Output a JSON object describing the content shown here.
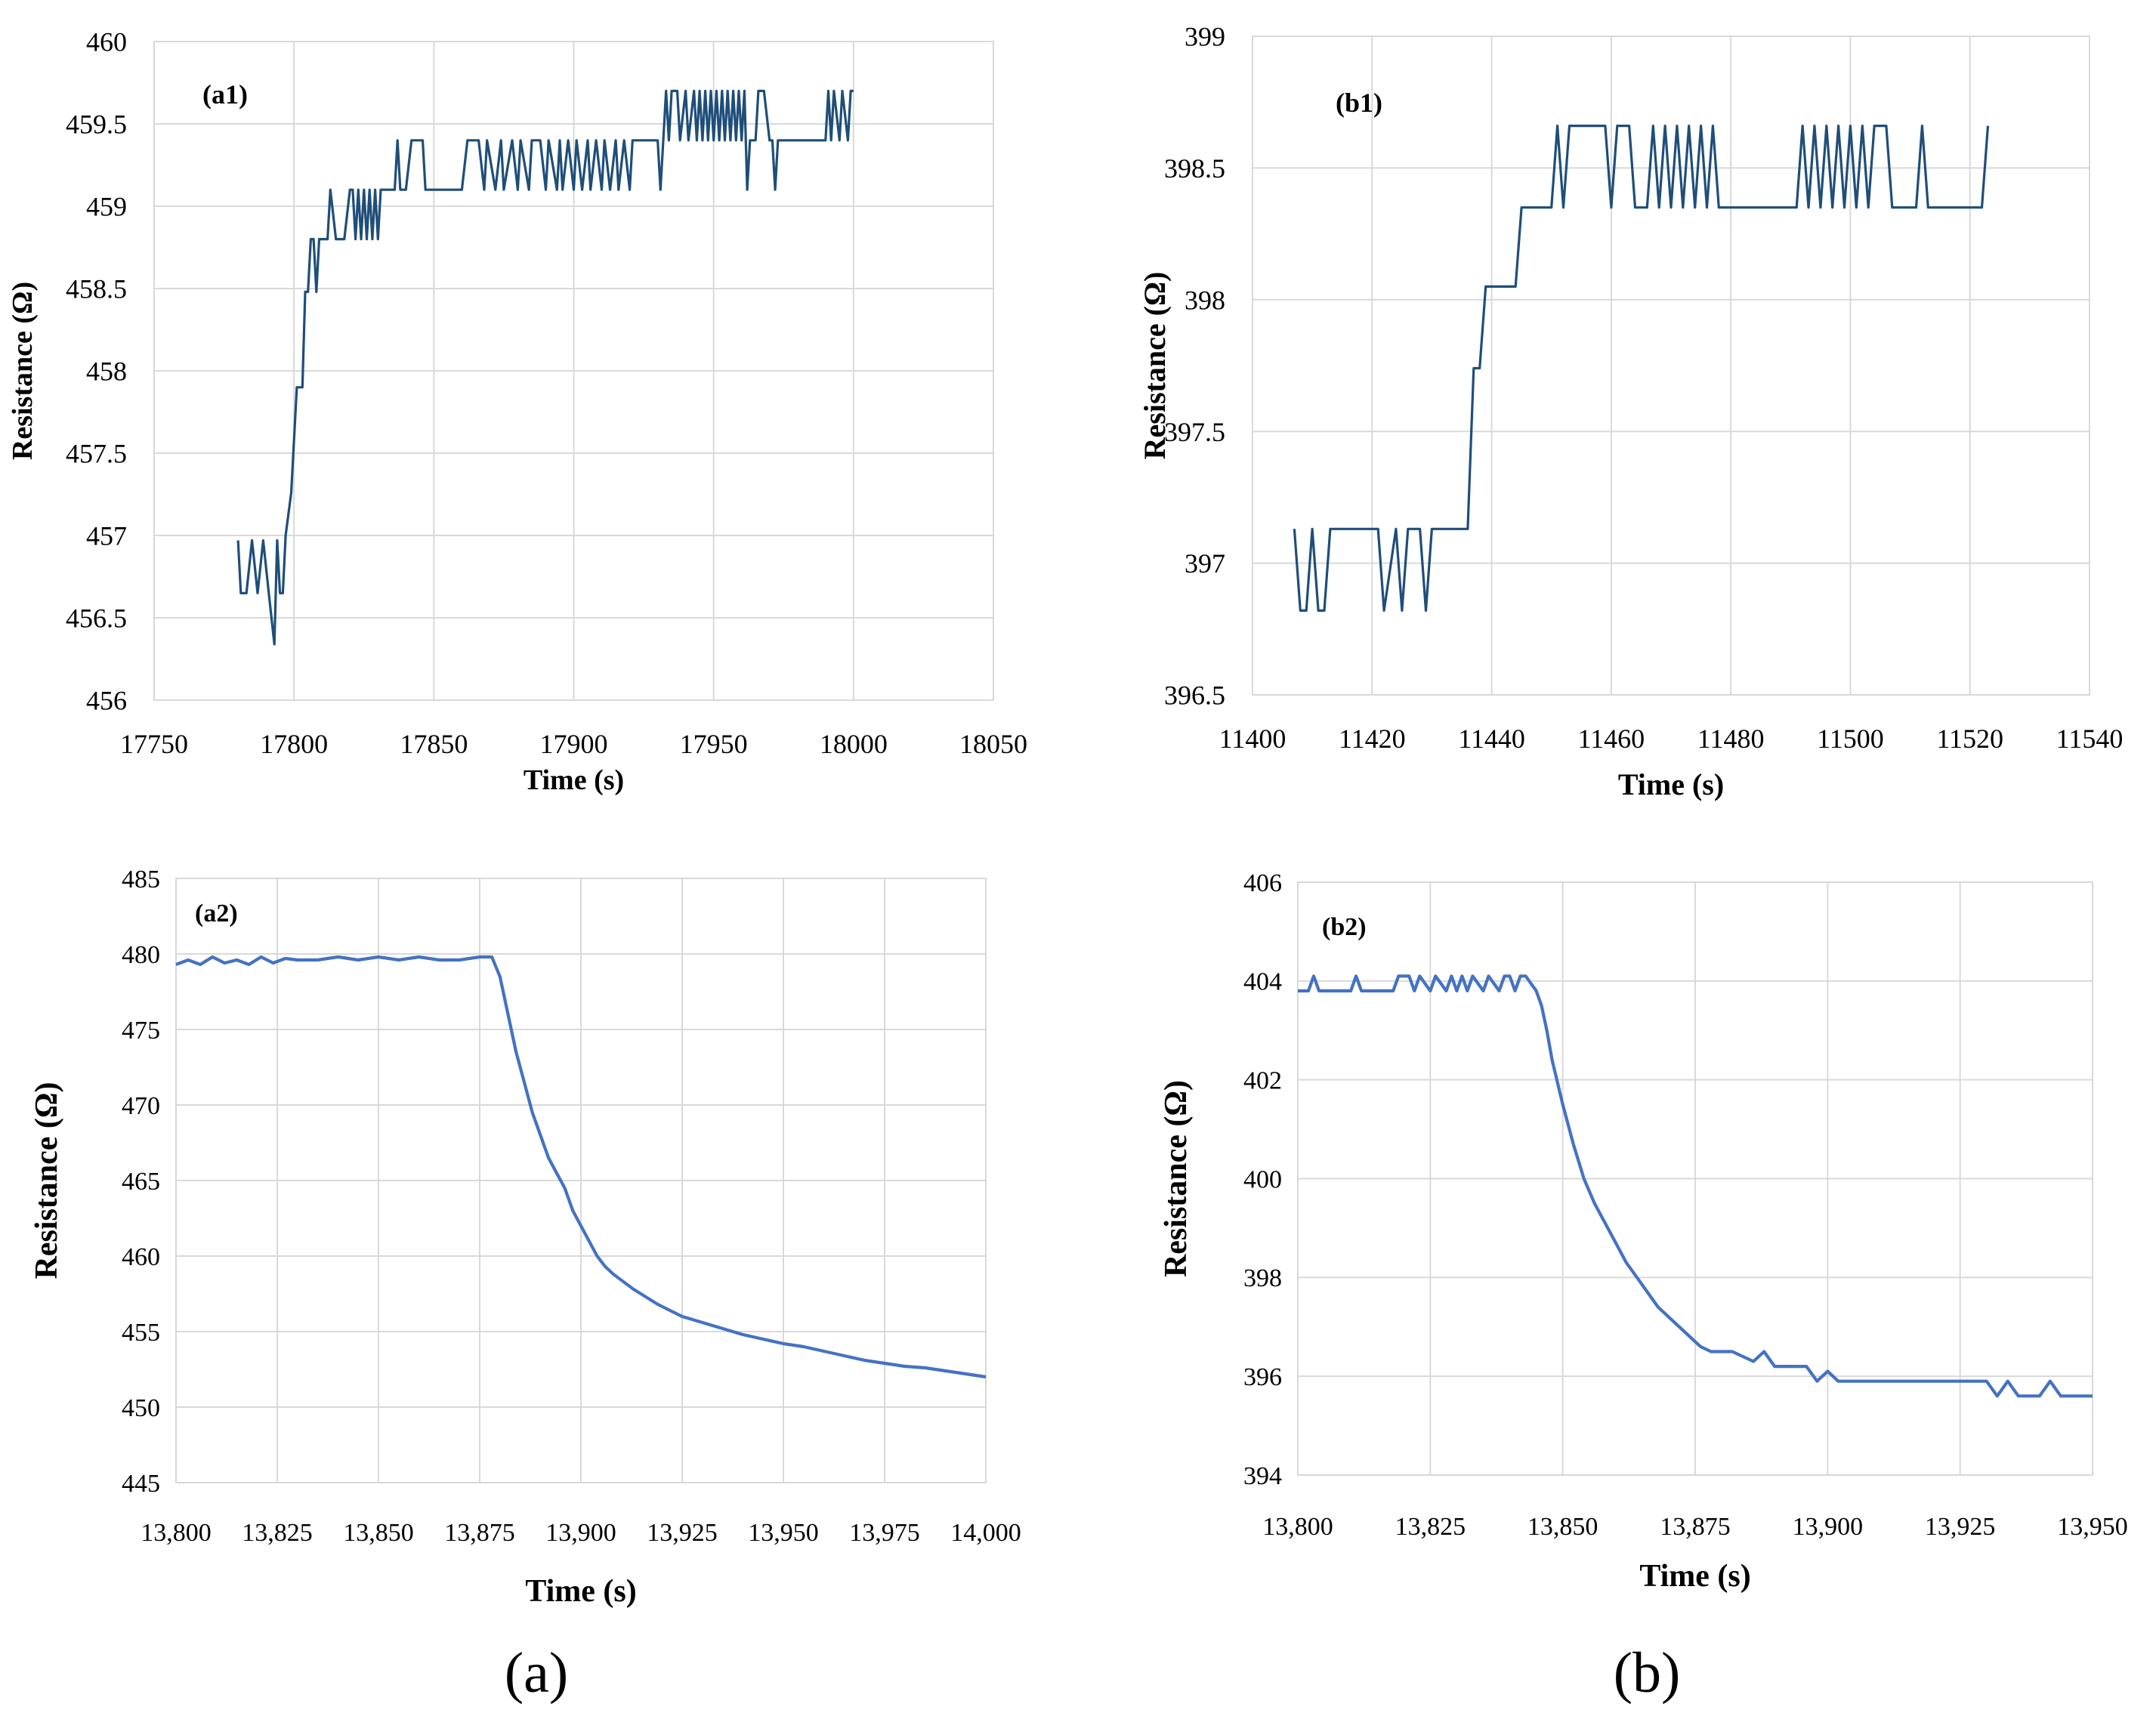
{
  "colors": {
    "dark_series": "#1f4e79",
    "light_series": "#4472c4",
    "grid": "#d9d9d9"
  },
  "captions": {
    "a": "(a)",
    "b": "(b)"
  },
  "chart_data": [
    {
      "id": "a1",
      "type": "line",
      "label": "(a1)",
      "xlabel": "Time (s)",
      "ylabel": "Resistance (Ω)",
      "xlim": [
        17750,
        18050
      ],
      "ylim": [
        456,
        460
      ],
      "xticks": [
        "17750",
        "17800",
        "17850",
        "17900",
        "17950",
        "18000",
        "18050"
      ],
      "yticks": [
        "456",
        "456.5",
        "457",
        "457.5",
        "458",
        "458.5",
        "459",
        "459.5",
        "460"
      ],
      "series": [
        {
          "name": "a1",
          "color": "#1f4e79",
          "x": [
            17780,
            17781,
            17783,
            17785,
            17787,
            17789,
            17791,
            17793,
            17794,
            17795,
            17796,
            17797,
            17799,
            17801,
            17803,
            17804,
            17805,
            17806,
            17807,
            17808,
            17809,
            17810,
            17812,
            17813,
            17815,
            17818,
            17820,
            17821,
            17822,
            17823,
            17824,
            17825,
            17826,
            17827,
            17828,
            17829,
            17830,
            17831,
            17832,
            17836,
            17837,
            17838,
            17840,
            17842,
            17843,
            17846,
            17847,
            17850,
            17860,
            17862,
            17863,
            17866,
            17868,
            17869,
            17872,
            17874,
            17875,
            17878,
            17880,
            17881,
            17884,
            17885,
            17888,
            17890,
            17891,
            17894,
            17895,
            17896,
            17898,
            17900,
            17901,
            17903,
            17905,
            17906,
            17908,
            17910,
            17911,
            17913,
            17915,
            17916,
            17918,
            17920,
            17921,
            17923,
            17925,
            17926,
            17928,
            17930,
            17931,
            17932,
            17933,
            17934,
            17935,
            17937,
            17938,
            17940,
            17941,
            17943,
            17944,
            17945,
            17946,
            17947,
            17948,
            17949,
            17950,
            17951,
            17952,
            17953,
            17954,
            17955,
            17956,
            17957,
            17958,
            17959,
            17960,
            17961,
            17962,
            17963,
            17964,
            17965,
            17966,
            17968,
            17970,
            17971,
            17972,
            17973,
            17975,
            17976,
            17977,
            17978,
            17980,
            17985,
            17990,
            17991,
            17992,
            17993,
            17995,
            17996,
            17998,
            17999,
            18000
          ],
          "y": [
            456.97,
            456.65,
            456.65,
            456.97,
            456.65,
            456.97,
            456.65,
            456.34,
            456.97,
            456.65,
            456.65,
            457.0,
            457.26,
            457.9,
            457.9,
            458.48,
            458.48,
            458.8,
            458.8,
            458.48,
            458.8,
            458.8,
            458.8,
            459.1,
            458.8,
            458.8,
            459.1,
            459.1,
            458.8,
            459.1,
            458.8,
            459.1,
            458.8,
            459.1,
            458.8,
            459.1,
            458.8,
            459.1,
            459.1,
            459.1,
            459.4,
            459.1,
            459.1,
            459.4,
            459.4,
            459.4,
            459.1,
            459.1,
            459.1,
            459.4,
            459.4,
            459.4,
            459.1,
            459.4,
            459.1,
            459.4,
            459.1,
            459.4,
            459.1,
            459.4,
            459.1,
            459.4,
            459.4,
            459.1,
            459.4,
            459.1,
            459.4,
            459.1,
            459.4,
            459.1,
            459.4,
            459.1,
            459.4,
            459.1,
            459.4,
            459.1,
            459.4,
            459.1,
            459.4,
            459.1,
            459.4,
            459.1,
            459.4,
            459.4,
            459.4,
            459.4,
            459.4,
            459.4,
            459.1,
            459.4,
            459.7,
            459.4,
            459.7,
            459.7,
            459.4,
            459.7,
            459.4,
            459.7,
            459.4,
            459.7,
            459.4,
            459.7,
            459.4,
            459.7,
            459.4,
            459.7,
            459.4,
            459.7,
            459.4,
            459.7,
            459.4,
            459.7,
            459.4,
            459.7,
            459.4,
            459.7,
            459.1,
            459.4,
            459.4,
            459.4,
            459.7,
            459.7,
            459.4,
            459.4,
            459.1,
            459.4,
            459.4,
            459.4,
            459.4,
            459.4,
            459.4,
            459.4,
            459.4,
            459.7,
            459.4,
            459.7,
            459.4,
            459.7,
            459.4,
            459.7,
            459.7
          ]
        }
      ]
    },
    {
      "id": "b1",
      "type": "line",
      "label": "(b1)",
      "xlabel": "Time (s)",
      "ylabel": "Resistance (Ω)",
      "xlim": [
        11400,
        11540
      ],
      "ylim": [
        396.5,
        399
      ],
      "xticks": [
        "11400",
        "11420",
        "11440",
        "11460",
        "11480",
        "11500",
        "11520",
        "11540"
      ],
      "yticks": [
        "396.5",
        "397",
        "397.5",
        "398",
        "398.5",
        "399"
      ],
      "series": [
        {
          "name": "b1",
          "color": "#1f4e79",
          "x": [
            11407,
            11408,
            11409,
            11410,
            11411,
            11412,
            11413,
            11414,
            11415,
            11416,
            11418,
            11420,
            11421,
            11422,
            11424,
            11425,
            11426,
            11427,
            11428,
            11429,
            11430,
            11431,
            11432,
            11433,
            11434,
            11436,
            11437,
            11438,
            11439,
            11440,
            11441,
            11442,
            11443,
            11444,
            11445,
            11446,
            11447,
            11448,
            11449,
            11450,
            11451,
            11452,
            11453,
            11454,
            11455,
            11456,
            11457,
            11458,
            11459,
            11460,
            11461,
            11462,
            11463,
            11464,
            11465,
            11466,
            11467,
            11468,
            11469,
            11470,
            11471,
            11472,
            11473,
            11474,
            11475,
            11476,
            11477,
            11478,
            11479,
            11480,
            11481,
            11482,
            11483,
            11484,
            11485,
            11486,
            11487,
            11488,
            11489,
            11490,
            11491,
            11492,
            11493,
            11494,
            11495,
            11496,
            11497,
            11498,
            11499,
            11500,
            11501,
            11502,
            11503,
            11504,
            11505,
            11506,
            11507,
            11508,
            11509,
            11510,
            11511,
            11512,
            11513,
            11514,
            11515,
            11516,
            11517,
            11518,
            11519,
            11520,
            11521,
            11522,
            11523
          ],
          "y": [
            397.13,
            396.82,
            396.82,
            397.13,
            396.82,
            396.82,
            397.13,
            397.13,
            397.13,
            397.13,
            397.13,
            397.13,
            397.13,
            396.82,
            397.13,
            396.82,
            397.13,
            397.13,
            397.13,
            396.82,
            397.13,
            397.13,
            397.13,
            397.13,
            397.13,
            397.13,
            397.74,
            397.74,
            398.05,
            398.05,
            398.05,
            398.05,
            398.05,
            398.05,
            398.35,
            398.35,
            398.35,
            398.35,
            398.35,
            398.35,
            398.66,
            398.35,
            398.66,
            398.66,
            398.66,
            398.66,
            398.66,
            398.66,
            398.66,
            398.35,
            398.66,
            398.66,
            398.66,
            398.35,
            398.35,
            398.35,
            398.66,
            398.35,
            398.66,
            398.35,
            398.66,
            398.35,
            398.66,
            398.35,
            398.66,
            398.35,
            398.66,
            398.35,
            398.35,
            398.35,
            398.35,
            398.35,
            398.35,
            398.35,
            398.35,
            398.35,
            398.35,
            398.35,
            398.35,
            398.35,
            398.35,
            398.66,
            398.35,
            398.66,
            398.35,
            398.66,
            398.35,
            398.66,
            398.35,
            398.66,
            398.35,
            398.66,
            398.35,
            398.66,
            398.66,
            398.66,
            398.35,
            398.35,
            398.35,
            398.35,
            398.35,
            398.66,
            398.35,
            398.35,
            398.35,
            398.35,
            398.35,
            398.35,
            398.35,
            398.35,
            398.35,
            398.35,
            398.66
          ]
        }
      ]
    },
    {
      "id": "a2",
      "type": "line",
      "label": "(a2)",
      "xlabel": "Time (s)",
      "ylabel": "Resistance (Ω)",
      "xlim": [
        13800,
        14000
      ],
      "ylim": [
        445,
        485
      ],
      "xticks": [
        "13,800",
        "13,825",
        "13,850",
        "13,875",
        "13,900",
        "13,925",
        "13,950",
        "13,975",
        "14,000"
      ],
      "yticks": [
        "445",
        "450",
        "455",
        "460",
        "465",
        "470",
        "475",
        "480",
        "485"
      ],
      "series": [
        {
          "name": "a2",
          "color": "#4472c4",
          "x": [
            13800,
            13803,
            13806,
            13809,
            13812,
            13815,
            13818,
            13821,
            13824,
            13827,
            13830,
            13835,
            13840,
            13845,
            13850,
            13855,
            13860,
            13865,
            13870,
            13875,
            13878,
            13880,
            13882,
            13884,
            13886,
            13888,
            13890,
            13892,
            13894,
            13896,
            13898,
            13900,
            13902,
            13904,
            13906,
            13908,
            13910,
            13913,
            13916,
            13919,
            13922,
            13925,
            13930,
            13935,
            13940,
            13945,
            13950,
            13955,
            13960,
            13965,
            13970,
            13975,
            13980,
            13985,
            13990,
            13995,
            14000
          ],
          "y": [
            479.3,
            479.6,
            479.3,
            479.8,
            479.4,
            479.6,
            479.3,
            479.8,
            479.4,
            479.7,
            479.6,
            479.6,
            479.8,
            479.6,
            479.8,
            479.6,
            479.8,
            479.6,
            479.6,
            479.8,
            479.8,
            478.5,
            476.0,
            473.5,
            471.5,
            469.5,
            468.0,
            466.5,
            465.5,
            464.5,
            463.0,
            462.0,
            461.0,
            460.0,
            459.3,
            458.8,
            458.4,
            457.8,
            457.3,
            456.8,
            456.4,
            456.0,
            455.6,
            455.2,
            454.8,
            454.5,
            454.2,
            454.0,
            453.7,
            453.4,
            453.1,
            452.9,
            452.7,
            452.6,
            452.4,
            452.2,
            452.0
          ]
        }
      ]
    },
    {
      "id": "b2",
      "type": "line",
      "label": "(b2)",
      "xlabel": "Time (s)",
      "ylabel": "Resistance (Ω)",
      "xlim": [
        13800,
        13950
      ],
      "ylim": [
        394,
        406
      ],
      "xticks": [
        "13,800",
        "13,825",
        "13,850",
        "13,875",
        "13,900",
        "13,925",
        "13,950"
      ],
      "yticks": [
        "394",
        "396",
        "398",
        "400",
        "402",
        "404",
        "406"
      ],
      "series": [
        {
          "name": "b2",
          "color": "#4472c4",
          "x": [
            13800,
            13802,
            13803,
            13804,
            13810,
            13811,
            13812,
            13818,
            13819,
            13821,
            13822,
            13823,
            13825,
            13826,
            13828,
            13829,
            13830,
            13831,
            13832,
            13833,
            13835,
            13836,
            13838,
            13839,
            13840,
            13841,
            13842,
            13843,
            13845,
            13846,
            13847,
            13848,
            13850,
            13852,
            13854,
            13856,
            13858,
            13860,
            13862,
            13864,
            13866,
            13868,
            13870,
            13872,
            13874,
            13876,
            13878,
            13880,
            13882,
            13884,
            13886,
            13888,
            13890,
            13892,
            13894,
            13896,
            13898,
            13900,
            13902,
            13904,
            13906,
            13910,
            13915,
            13920,
            13925,
            13930,
            13932,
            13934,
            13936,
            13938,
            13940,
            13942,
            13944,
            13946,
            13948,
            13950
          ],
          "y": [
            403.8,
            403.8,
            404.1,
            403.8,
            403.8,
            404.1,
            403.8,
            403.8,
            404.1,
            404.1,
            403.8,
            404.1,
            403.8,
            404.1,
            403.8,
            404.1,
            403.8,
            404.1,
            403.8,
            404.1,
            403.8,
            404.1,
            403.8,
            404.1,
            404.1,
            403.8,
            404.1,
            404.1,
            403.8,
            403.5,
            403.0,
            402.4,
            401.5,
            400.7,
            400.0,
            399.5,
            399.1,
            398.7,
            398.3,
            398.0,
            397.7,
            397.4,
            397.2,
            397.0,
            396.8,
            396.6,
            396.5,
            396.5,
            396.5,
            396.4,
            396.3,
            396.5,
            396.2,
            396.2,
            396.2,
            396.2,
            395.9,
            396.1,
            395.9,
            395.9,
            395.9,
            395.9,
            395.9,
            395.9,
            395.9,
            395.9,
            395.6,
            395.9,
            395.6,
            395.6,
            395.6,
            395.9,
            395.6,
            395.6,
            395.6,
            395.6
          ]
        }
      ]
    }
  ]
}
